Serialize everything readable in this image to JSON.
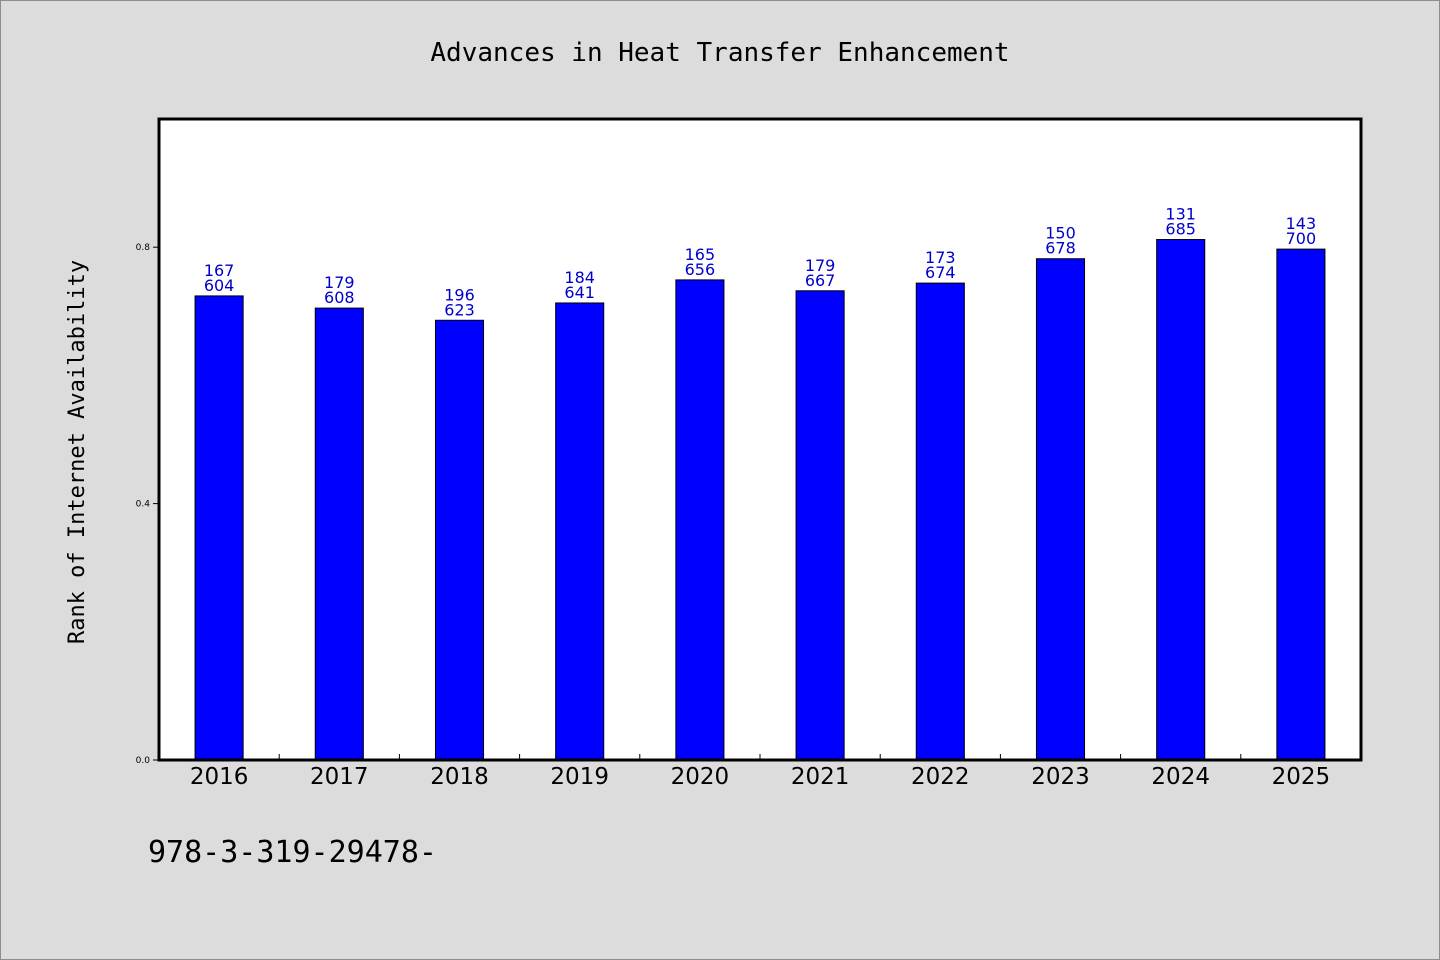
{
  "chart_data": {
    "type": "bar",
    "title": "Advances in Heat Transfer Enhancement",
    "xlabel": "",
    "ylabel": "Rank of Internet Availability",
    "categories": [
      "2016",
      "2017",
      "2018",
      "2019",
      "2020",
      "2021",
      "2022",
      "2023",
      "2024",
      "2025"
    ],
    "values": [
      0.724,
      0.705,
      0.686,
      0.713,
      0.749,
      0.732,
      0.744,
      0.782,
      0.812,
      0.797
    ],
    "label_top": [
      "167",
      "179",
      "196",
      "184",
      "165",
      "179",
      "173",
      "150",
      "131",
      "143"
    ],
    "label_bottom": [
      "604",
      "608",
      "623",
      "641",
      "656",
      "667",
      "674",
      "678",
      "685",
      "700"
    ],
    "yticks": [
      "0.0",
      "0.4",
      "0.8"
    ],
    "ytick_values": [
      0.0,
      0.4,
      0.8
    ],
    "ylim": [
      0,
      1.0
    ],
    "grid": false,
    "bar_color": "#0000ff",
    "label_color": "#0000cc",
    "footer": "978-3-319-29478-"
  }
}
